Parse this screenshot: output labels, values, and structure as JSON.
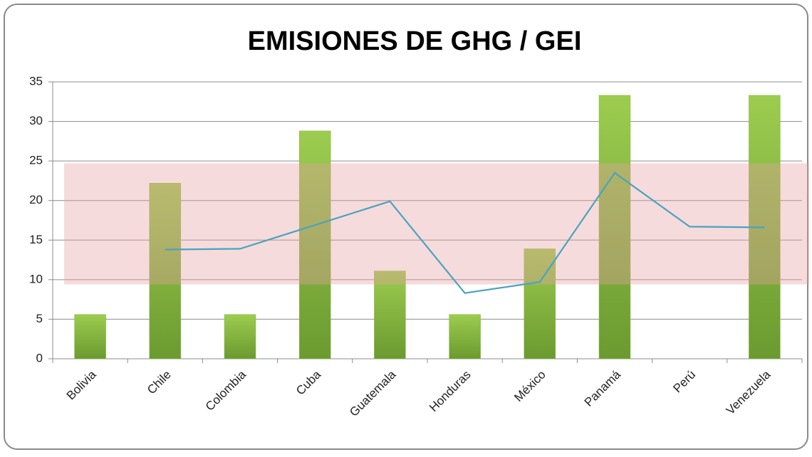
{
  "chart_data": {
    "type": "bar",
    "title": "EMISIONES DE GHG / GEI",
    "categories": [
      "Bolivia",
      "Chile",
      "Colombia",
      "Cuba",
      "Guatemala",
      "Honduras",
      "México",
      "Panamá",
      "Perú",
      "Venezuela"
    ],
    "series": [
      {
        "type": "bar",
        "color": "#8cba45",
        "values": [
          5.6,
          22.2,
          5.6,
          28.8,
          11.1,
          5.6,
          13.9,
          33.3,
          null,
          33.3
        ]
      },
      {
        "type": "line",
        "color": "#4aa3c0",
        "values": [
          null,
          13.8,
          13.9,
          16.9,
          19.9,
          8.3,
          9.7,
          23.5,
          16.7,
          16.6
        ]
      }
    ],
    "band": {
      "from": 9.4,
      "to": 24.7,
      "color": "#e8a0a4"
    },
    "ylim": [
      0,
      35
    ],
    "yticks": [
      0,
      5,
      10,
      15,
      20,
      25,
      30,
      35
    ],
    "grid": true
  }
}
